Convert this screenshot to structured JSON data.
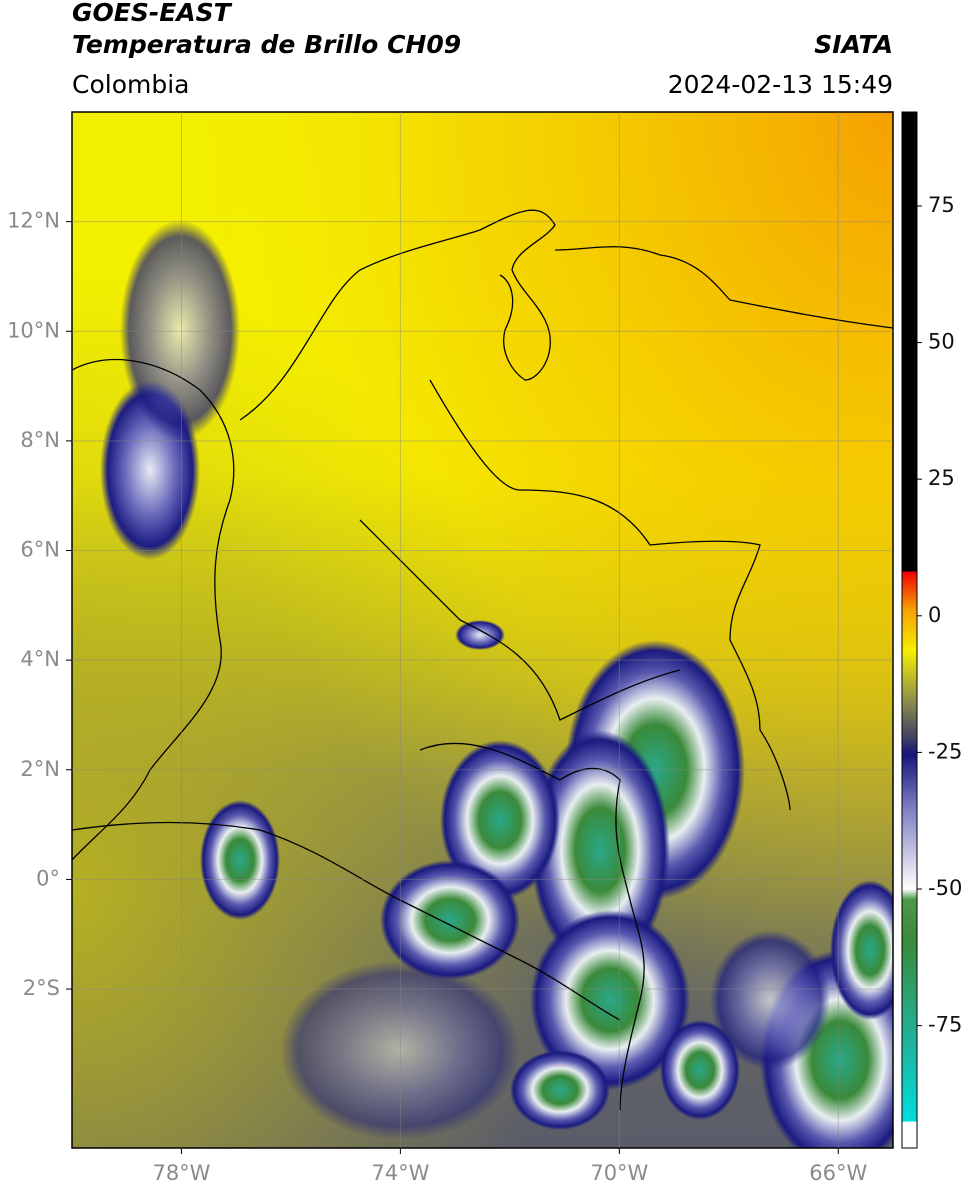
{
  "header": {
    "satellite": "GOES-EAST",
    "product": "Temperatura de Brillo CH09",
    "region": "Colombia",
    "source": "SIATA",
    "datetime": "2024-02-13 15:49"
  },
  "map": {
    "xlim": [
      -80,
      -65
    ],
    "ylim": [
      -4.9,
      14
    ],
    "xticks": [
      {
        "value": -78,
        "label": "78°W"
      },
      {
        "value": -74,
        "label": "74°W"
      },
      {
        "value": -70,
        "label": "70°W"
      },
      {
        "value": -66,
        "label": "66°W"
      }
    ],
    "yticks": [
      {
        "value": 12,
        "label": "12°N"
      },
      {
        "value": 10,
        "label": "10°N"
      },
      {
        "value": 8,
        "label": "8°N"
      },
      {
        "value": 6,
        "label": "6°N"
      },
      {
        "value": 4,
        "label": "4°N"
      },
      {
        "value": 2,
        "label": "2°N"
      },
      {
        "value": 0,
        "label": "0°"
      },
      {
        "value": -2,
        "label": "2°S"
      }
    ],
    "grid": true
  },
  "colorbar": {
    "lim": [
      -97.4,
      92.2
    ],
    "ticks": [
      75,
      50,
      25,
      0,
      -25,
      -50,
      -75
    ]
  }
}
